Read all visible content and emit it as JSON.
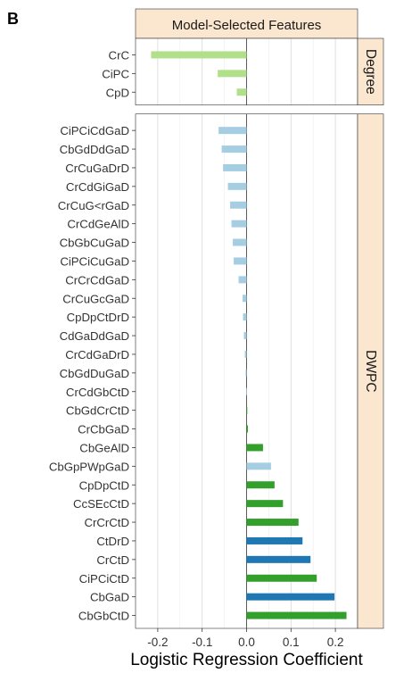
{
  "panel_letter": "B",
  "chart_data": {
    "type": "bar",
    "orientation": "horizontal",
    "title": "Model-Selected Features",
    "xlabel": "Logistic Regression Coefficient",
    "ylabel": "",
    "xlim": [
      -0.25,
      0.25
    ],
    "xticks": [
      -0.2,
      -0.1,
      0.0,
      0.1,
      0.2
    ],
    "grid": true,
    "colors": {
      "light_green": "#b2df8a",
      "light_blue": "#a6cee3",
      "dark_green": "#33a02c",
      "dark_blue": "#1f78b4",
      "strip_fill": "#fbe6cf"
    },
    "facets": [
      {
        "label": "Degree",
        "bars": [
          {
            "category": "CrC",
            "value": -0.215,
            "color": "light_green"
          },
          {
            "category": "CiPC",
            "value": -0.065,
            "color": "light_green"
          },
          {
            "category": "CpD",
            "value": -0.022,
            "color": "light_green"
          }
        ]
      },
      {
        "label": "DWPC",
        "bars": [
          {
            "category": "CiPCiCdGaD",
            "value": -0.063,
            "color": "light_blue"
          },
          {
            "category": "CbGdDdGaD",
            "value": -0.056,
            "color": "light_blue"
          },
          {
            "category": "CrCuGaDrD",
            "value": -0.053,
            "color": "light_blue"
          },
          {
            "category": "CrCdGiGaD",
            "value": -0.042,
            "color": "light_blue"
          },
          {
            "category": "CrCuG<rGaD",
            "value": -0.037,
            "color": "light_blue"
          },
          {
            "category": "CrCdGeAlD",
            "value": -0.034,
            "color": "light_blue"
          },
          {
            "category": "CbGbCuGaD",
            "value": -0.031,
            "color": "light_blue"
          },
          {
            "category": "CiPCiCuGaD",
            "value": -0.029,
            "color": "light_blue"
          },
          {
            "category": "CrCrCdGaD",
            "value": -0.018,
            "color": "light_blue"
          },
          {
            "category": "CrCuGcGaD",
            "value": -0.009,
            "color": "light_blue"
          },
          {
            "category": "CpDpCtDrD",
            "value": -0.008,
            "color": "light_blue"
          },
          {
            "category": "CdGaDdGaD",
            "value": -0.006,
            "color": "light_blue"
          },
          {
            "category": "CrCdGaDrD",
            "value": -0.004,
            "color": "light_blue"
          },
          {
            "category": "CbGdDuGaD",
            "value": -0.002,
            "color": "light_blue"
          },
          {
            "category": "CrCdGbCtD",
            "value": -0.001,
            "color": "light_blue"
          },
          {
            "category": "CbGdCrCtD",
            "value": 0.001,
            "color": "dark_green"
          },
          {
            "category": "CrCbGaD",
            "value": 0.003,
            "color": "dark_green"
          },
          {
            "category": "CbGeAlD",
            "value": 0.037,
            "color": "dark_green"
          },
          {
            "category": "CbGpPWpGaD",
            "value": 0.055,
            "color": "light_blue"
          },
          {
            "category": "CpDpCtD",
            "value": 0.063,
            "color": "dark_green"
          },
          {
            "category": "CcSEcCtD",
            "value": 0.082,
            "color": "dark_green"
          },
          {
            "category": "CrCrCtD",
            "value": 0.117,
            "color": "dark_green"
          },
          {
            "category": "CtDrD",
            "value": 0.126,
            "color": "dark_blue"
          },
          {
            "category": "CrCtD",
            "value": 0.144,
            "color": "dark_blue"
          },
          {
            "category": "CiPCiCtD",
            "value": 0.158,
            "color": "dark_green"
          },
          {
            "category": "CbGaD",
            "value": 0.198,
            "color": "dark_blue"
          },
          {
            "category": "CbGbCtD",
            "value": 0.225,
            "color": "dark_green"
          }
        ]
      }
    ]
  }
}
